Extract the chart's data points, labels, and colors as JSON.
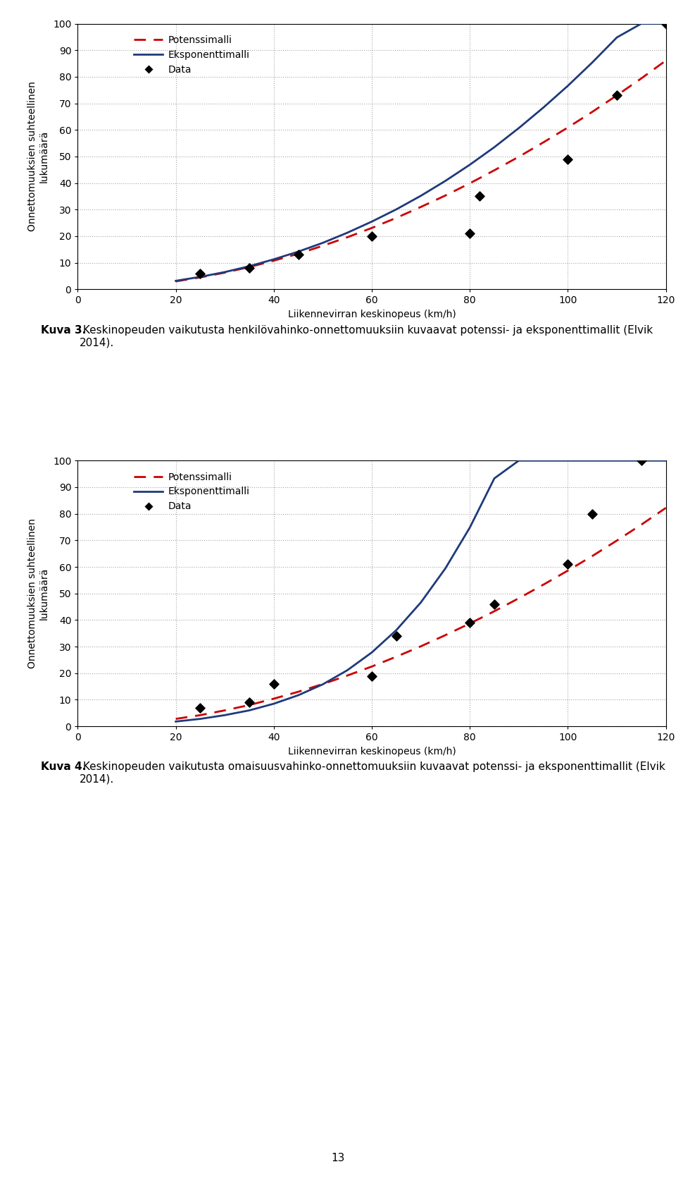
{
  "chart1": {
    "data_x": [
      25,
      35,
      45,
      60,
      80,
      82,
      100,
      110,
      120
    ],
    "data_y": [
      6,
      8,
      13,
      20,
      21,
      35,
      49,
      73,
      100
    ],
    "power_x": [
      20,
      25,
      30,
      35,
      40,
      45,
      50,
      55,
      60,
      65,
      70,
      75,
      80,
      85,
      90,
      95,
      100,
      105,
      110,
      115,
      120
    ],
    "power_y": [
      3.0,
      4.5,
      6.3,
      8.4,
      10.8,
      13.4,
      16.4,
      19.6,
      23.1,
      26.9,
      31.0,
      35.3,
      39.9,
      44.8,
      49.9,
      55.3,
      60.9,
      66.8,
      73.0,
      79.4,
      86.1
    ],
    "exp_x": [
      20,
      25,
      30,
      35,
      40,
      45,
      50,
      55,
      60,
      65,
      70,
      75,
      80,
      85,
      90,
      95,
      100,
      105,
      110,
      115,
      120
    ],
    "exp_y": [
      3.2,
      4.7,
      6.5,
      8.7,
      11.3,
      14.2,
      17.5,
      21.3,
      25.5,
      30.1,
      35.2,
      40.8,
      46.9,
      53.5,
      60.7,
      68.4,
      76.6,
      85.4,
      94.8,
      100.0,
      100.0
    ],
    "xlabel": "Liikennevirran keskinopeus (km/h)",
    "ylabel": "Onnettomuuksien suhteellinen\nlukumäärä",
    "xlim": [
      0,
      120
    ],
    "ylim": [
      0,
      100
    ],
    "xticks": [
      0,
      20,
      40,
      60,
      80,
      100,
      120
    ],
    "yticks": [
      0,
      10,
      20,
      30,
      40,
      50,
      60,
      70,
      80,
      90,
      100
    ],
    "caption_bold": "Kuva 3.",
    "caption_normal": " Keskinopeuden vaikutusta henkilövahinko-onnettomuuksiin kuvaavat potenssi- ja eksponenttimallit (Elvik 2014)."
  },
  "chart2": {
    "data_x": [
      25,
      35,
      40,
      60,
      65,
      80,
      85,
      100,
      105,
      115
    ],
    "data_y": [
      7,
      9,
      16,
      19,
      34,
      39,
      46,
      61,
      80,
      100
    ],
    "power_x": [
      20,
      25,
      30,
      35,
      40,
      45,
      50,
      55,
      60,
      65,
      70,
      75,
      80,
      85,
      90,
      95,
      100,
      105,
      110,
      115,
      120
    ],
    "power_y": [
      2.8,
      4.2,
      6.0,
      8.0,
      10.4,
      13.0,
      15.9,
      19.1,
      22.5,
      26.2,
      30.1,
      34.3,
      38.7,
      43.3,
      48.2,
      53.3,
      58.6,
      64.1,
      69.9,
      75.9,
      82.2
    ],
    "exp_x": [
      20,
      25,
      30,
      35,
      40,
      45,
      50,
      55,
      60,
      65,
      70,
      75,
      80,
      85,
      90,
      95,
      100,
      105,
      110,
      115,
      120
    ],
    "exp_y": [
      1.8,
      2.8,
      4.2,
      6.0,
      8.5,
      11.7,
      15.8,
      21.1,
      27.8,
      36.2,
      46.6,
      59.4,
      74.8,
      93.3,
      100.0,
      100.0,
      100.0,
      100.0,
      100.0,
      100.0,
      100.0
    ],
    "xlabel": "Liikennevirran keskinopeus (km/h)",
    "ylabel": "Onnettomuuksien suhteellinen\nlukumäärä",
    "xlim": [
      0,
      120
    ],
    "ylim": [
      0,
      100
    ],
    "xticks": [
      0,
      20,
      40,
      60,
      80,
      100,
      120
    ],
    "yticks": [
      0,
      10,
      20,
      30,
      40,
      50,
      60,
      70,
      80,
      90,
      100
    ],
    "caption_bold": "Kuva 4.",
    "caption_normal": " Keskinopeuden vaikutusta omaisuusvahinko-onnettomuuksiin kuvaavat potenssi- ja eksponenttimallit (Elvik 2014)."
  },
  "legend_entries": [
    "Potenssimalli",
    "Eksponenttimalli",
    "Data"
  ],
  "power_color": "#CC0000",
  "exp_color": "#1F3A7A",
  "data_color": "#000000",
  "bg_color": "#FFFFFF",
  "grid_color": "#999999",
  "font_size_tick": 10,
  "font_size_label": 10,
  "font_size_legend": 10,
  "font_size_caption": 11,
  "page_number": "13"
}
